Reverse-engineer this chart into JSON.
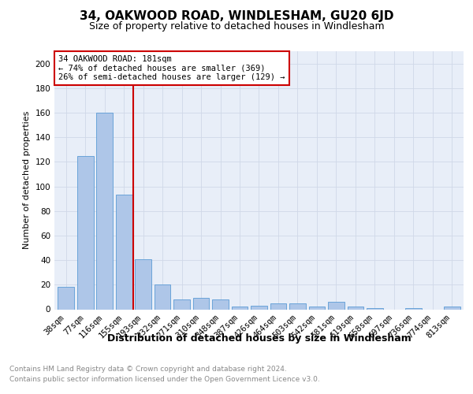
{
  "title": "34, OAKWOOD ROAD, WINDLESHAM, GU20 6JD",
  "subtitle": "Size of property relative to detached houses in Windlesham",
  "xlabel": "Distribution of detached houses by size in Windlesham",
  "ylabel": "Number of detached properties",
  "categories": [
    "38sqm",
    "77sqm",
    "116sqm",
    "155sqm",
    "193sqm",
    "232sqm",
    "271sqm",
    "310sqm",
    "348sqm",
    "387sqm",
    "426sqm",
    "464sqm",
    "503sqm",
    "542sqm",
    "581sqm",
    "619sqm",
    "658sqm",
    "697sqm",
    "736sqm",
    "774sqm",
    "813sqm"
  ],
  "values": [
    18,
    125,
    160,
    93,
    41,
    20,
    8,
    9,
    8,
    2,
    3,
    5,
    5,
    2,
    6,
    2,
    1,
    0,
    1,
    0,
    2
  ],
  "bar_color": "#aec6e8",
  "bar_edge_color": "#5b9bd5",
  "vline_color": "#cc0000",
  "annotation_line1": "34 OAKWOOD ROAD: 181sqm",
  "annotation_line2": "← 74% of detached houses are smaller (369)",
  "annotation_line3": "26% of semi-detached houses are larger (129) →",
  "annotation_box_color": "#cc0000",
  "annotation_box_bg": "#ffffff",
  "ylim": [
    0,
    210
  ],
  "yticks": [
    0,
    20,
    40,
    60,
    80,
    100,
    120,
    140,
    160,
    180,
    200
  ],
  "grid_color": "#d0d8e8",
  "bg_color": "#e8eef8",
  "footer_line1": "Contains HM Land Registry data © Crown copyright and database right 2024.",
  "footer_line2": "Contains public sector information licensed under the Open Government Licence v3.0.",
  "title_fontsize": 11,
  "subtitle_fontsize": 9,
  "xlabel_fontsize": 9,
  "ylabel_fontsize": 8,
  "tick_fontsize": 7.5,
  "annotation_fontsize": 7.5,
  "footer_fontsize": 6.5
}
